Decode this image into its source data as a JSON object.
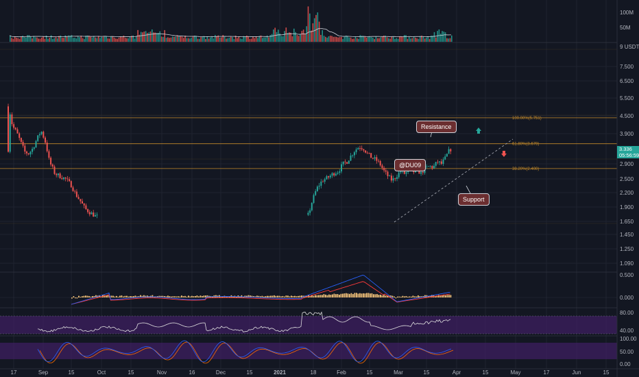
{
  "colors": {
    "background": "#131722",
    "grid": "#1f2330",
    "bull": "#26a69a",
    "bear": "#ef5350",
    "fib_line": "#c48a2a",
    "callout_bg": "#6b2e30",
    "rsi_band": "#3b1e5c",
    "macd_line": "#2962ff",
    "signal_line": "#ff3b3b",
    "histogram": "#f5c37a",
    "volume_ma": "#d1d4dc"
  },
  "price_axis": {
    "unit_label": "USDT",
    "labels": [
      "9",
      "7.500",
      "6.500",
      "5.500",
      "4.500",
      "3.900",
      "2.900",
      "2.500",
      "2.200",
      "1.900",
      "1.650",
      "1.450",
      "1.250",
      "1.090"
    ]
  },
  "current_price": {
    "value": "3.336",
    "countdown": "05:56:59"
  },
  "volume_axis": {
    "labels": [
      "100M",
      "50M"
    ]
  },
  "macd_axis": {
    "labels": [
      "0.500",
      "0.000"
    ]
  },
  "rsi_axis": {
    "labels": [
      "80.00",
      "40.00"
    ]
  },
  "stoch_axis": {
    "labels": [
      "100.00",
      "50.00",
      "0.00"
    ]
  },
  "fib_levels": [
    {
      "label": "100.00%(5.751)",
      "price": 5.751,
      "strong": true
    },
    {
      "label": "61.80%(3.679)",
      "price": 3.679,
      "strong": true
    },
    {
      "label": "38.20%(2.400)",
      "price": 2.4,
      "strong": true
    }
  ],
  "annotations": {
    "resistance": "Resistance",
    "support": "Support",
    "author": "@DU09"
  },
  "x_axis": {
    "labels": [
      "17",
      "Sep",
      "15",
      "Oct",
      "15",
      "Nov",
      "16",
      "Dec",
      "15",
      "2021",
      "18",
      "Feb",
      "15",
      "Mar",
      "15",
      "Apr",
      "15",
      "May",
      "17",
      "Jun",
      "15"
    ]
  }
}
